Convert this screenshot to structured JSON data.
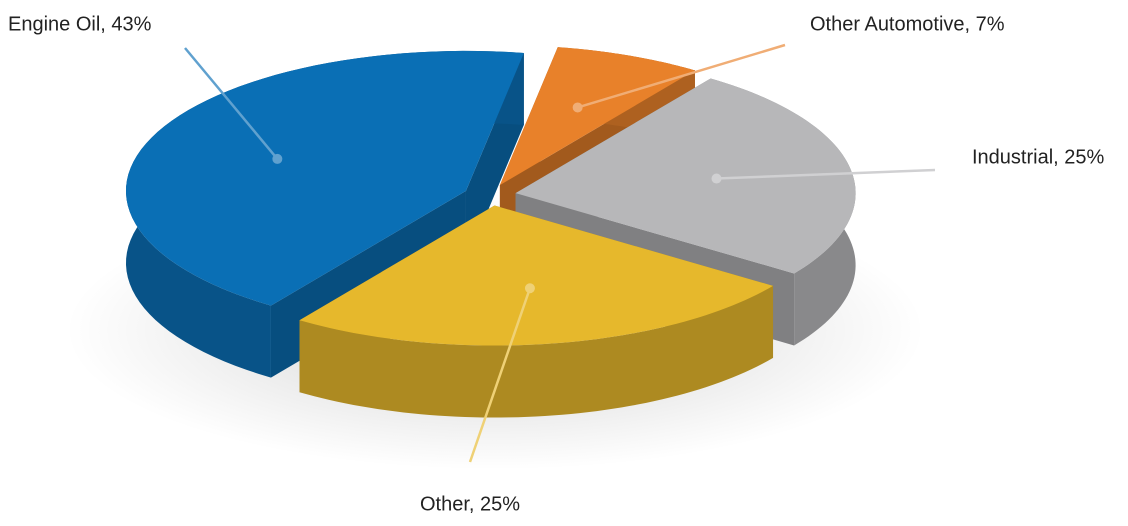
{
  "chart_data": {
    "type": "pie3d",
    "values": [
      43,
      7,
      25,
      25
    ],
    "value_labels": [
      "Engine Oil, 43%",
      "Other Automotive, 7%",
      "Industrial, 25%",
      "Other, 25%"
    ],
    "colors": [
      "#0a6fb5",
      "#e8812a",
      "#b7b7b9",
      "#e6b82c"
    ]
  }
}
